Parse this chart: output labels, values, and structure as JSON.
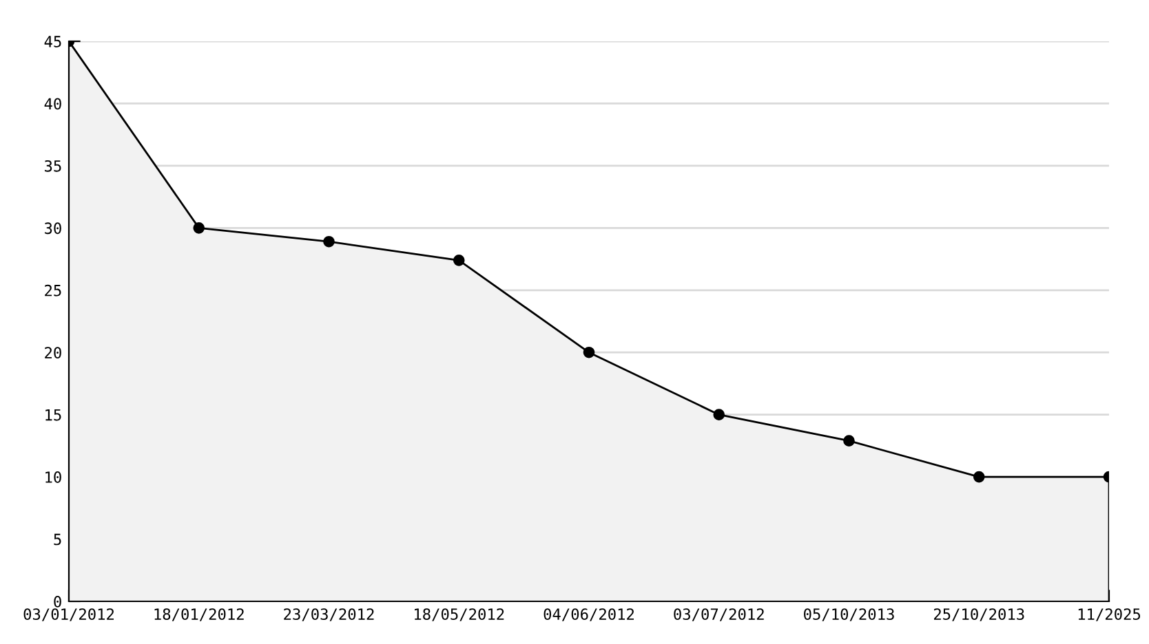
{
  "chart_data": {
    "type": "area",
    "categories": [
      "03/01/2012",
      "18/01/2012",
      "23/03/2012",
      "18/05/2012",
      "04/06/2012",
      "03/07/2012",
      "05/10/2013",
      "25/10/2013",
      "11/2025"
    ],
    "series": [
      {
        "color": "#000000",
        "values": [
          45,
          30,
          28.9,
          27.4,
          20,
          15,
          12.9,
          10,
          10
        ]
      }
    ],
    "ylim": [
      0,
      45
    ],
    "yticks": [
      0,
      5,
      10,
      15,
      20,
      25,
      30,
      35,
      40,
      45
    ],
    "grid": "y",
    "marker": "circle",
    "line_style": "solid",
    "legend": false
  }
}
